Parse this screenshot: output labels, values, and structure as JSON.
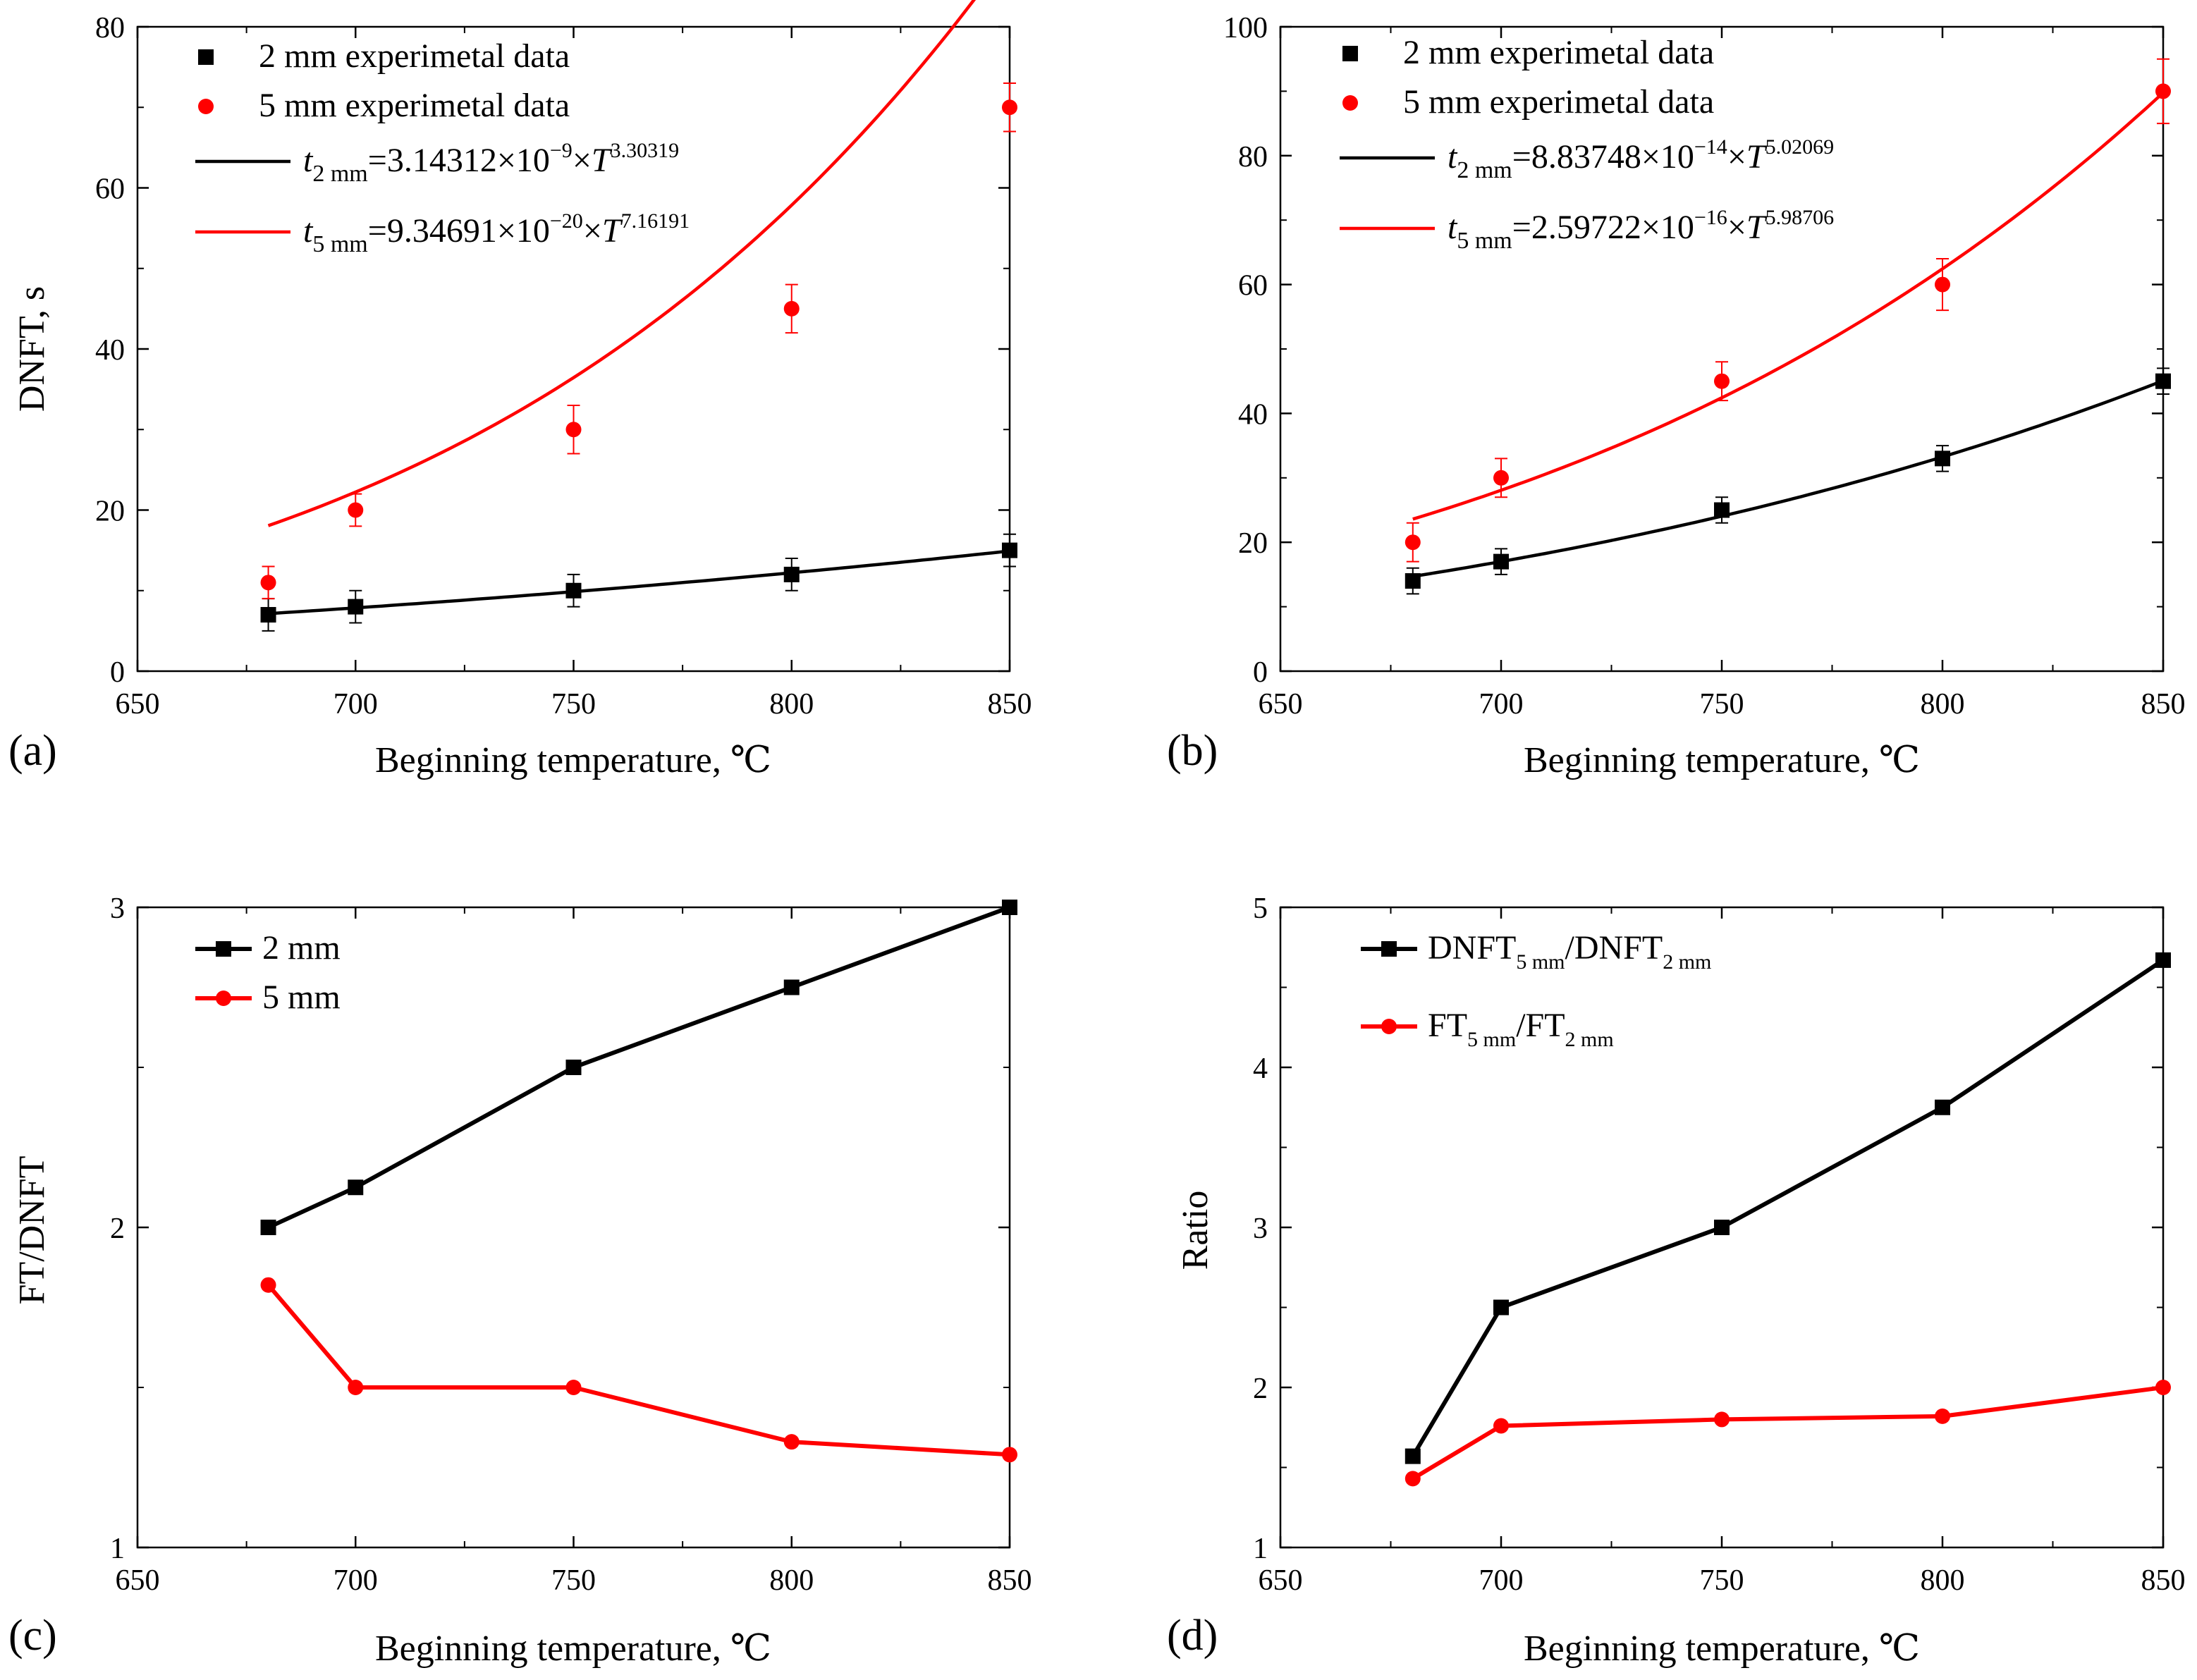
{
  "chart_data": [
    {
      "id": "a",
      "type": "scatter",
      "panel_label": "(a)",
      "xlabel": "Beginning temperature, ℃",
      "ylabel": "DNFT, s",
      "xlim": [
        650,
        850
      ],
      "ylim": [
        0,
        80
      ],
      "xticks": [
        650,
        700,
        750,
        800,
        850
      ],
      "yticks": [
        0,
        20,
        40,
        60,
        80
      ],
      "legend_position": "top-left",
      "series": [
        {
          "name": "2 mm experimetal data",
          "kind": "points",
          "marker": "square",
          "color": "#000000",
          "x": [
            680,
            700,
            750,
            800,
            850
          ],
          "y": [
            7,
            8,
            10,
            12,
            15
          ],
          "err": [
            2,
            2,
            2,
            2,
            2
          ]
        },
        {
          "name": "5 mm experimetal data",
          "kind": "points",
          "marker": "circle",
          "color": "#ff0000",
          "x": [
            680,
            700,
            750,
            800,
            850
          ],
          "y": [
            11,
            20,
            30,
            45,
            70
          ],
          "err": [
            2,
            2,
            3,
            3,
            3
          ]
        },
        {
          "name": "t_2mm fit",
          "kind": "fit",
          "color": "#000000",
          "coef": 3.14312e-09,
          "exp": 3.30319,
          "legend_parts": {
            "var": "t",
            "sub": "2 mm",
            "eq": "=3.14312×10",
            "sup1": "−9",
            "mid": "×T",
            "sup2": "3.30319"
          }
        },
        {
          "name": "t_5mm fit",
          "kind": "fit",
          "color": "#ff0000",
          "coef": 9.34691e-20,
          "exp": 7.16191,
          "legend_parts": {
            "var": "t",
            "sub": "5 mm",
            "eq": "=9.34691×10",
            "sup1": "−20",
            "mid": "×T",
            "sup2": "7.16191"
          }
        }
      ]
    },
    {
      "id": "b",
      "type": "scatter",
      "panel_label": "(b)",
      "xlabel": "Beginning temperature, ℃",
      "ylabel": "",
      "xlim": [
        650,
        850
      ],
      "ylim": [
        0,
        100
      ],
      "xticks": [
        650,
        700,
        750,
        800,
        850
      ],
      "yticks": [
        0,
        20,
        40,
        60,
        80,
        100
      ],
      "legend_position": "top-left",
      "series": [
        {
          "name": "2 mm experimetal data",
          "kind": "points",
          "marker": "square",
          "color": "#000000",
          "x": [
            680,
            700,
            750,
            800,
            850
          ],
          "y": [
            14,
            17,
            25,
            33,
            45
          ],
          "err": [
            2,
            2,
            2,
            2,
            2
          ]
        },
        {
          "name": "5 mm experimetal data",
          "kind": "points",
          "marker": "circle",
          "color": "#ff0000",
          "x": [
            680,
            700,
            750,
            800,
            850
          ],
          "y": [
            20,
            30,
            45,
            60,
            90
          ],
          "err": [
            3,
            3,
            3,
            4,
            5
          ]
        },
        {
          "name": "t_2mm fit",
          "kind": "fit",
          "color": "#000000",
          "coef": 8.83748e-14,
          "exp": 5.02069,
          "legend_parts": {
            "var": "t",
            "sub": "2 mm",
            "eq": "=8.83748×10",
            "sup1": "−14",
            "mid": "×T",
            "sup2": "5.02069"
          }
        },
        {
          "name": "t_5mm fit",
          "kind": "fit",
          "color": "#ff0000",
          "coef": 2.59722e-16,
          "exp": 5.98706,
          "legend_parts": {
            "var": "t",
            "sub": "5 mm",
            "eq": "=2.59722×10",
            "sup1": "−16",
            "mid": "×T",
            "sup2": "5.98706"
          }
        }
      ]
    },
    {
      "id": "c",
      "type": "line",
      "panel_label": "(c)",
      "xlabel": "Beginning temperature, ℃",
      "ylabel": "FT/DNFT",
      "xlim": [
        650,
        850
      ],
      "ylim": [
        1,
        3
      ],
      "xticks": [
        650,
        700,
        750,
        800,
        850
      ],
      "yticks": [
        1,
        2,
        3
      ],
      "legend_position": "top-left",
      "series": [
        {
          "name": "2 mm",
          "kind": "line",
          "marker": "square",
          "color": "#000000",
          "x": [
            680,
            700,
            750,
            800,
            850
          ],
          "y": [
            2.0,
            2.125,
            2.5,
            2.75,
            3.0
          ]
        },
        {
          "name": "5 mm",
          "kind": "line",
          "marker": "circle",
          "color": "#ff0000",
          "x": [
            680,
            700,
            750,
            800,
            850
          ],
          "y": [
            1.82,
            1.5,
            1.5,
            1.33,
            1.29
          ]
        }
      ]
    },
    {
      "id": "d",
      "type": "line",
      "panel_label": "(d)",
      "xlabel": "Beginning temperature, ℃",
      "ylabel": "Ratio",
      "xlim": [
        650,
        850
      ],
      "ylim": [
        1,
        5
      ],
      "xticks": [
        650,
        700,
        750,
        800,
        850
      ],
      "yticks": [
        1,
        2,
        3,
        4,
        5
      ],
      "legend_position": "top-left",
      "series": [
        {
          "name": "DNFT5mm/DNFT2mm",
          "kind": "line",
          "marker": "square",
          "color": "#000000",
          "x": [
            680,
            700,
            750,
            800,
            850
          ],
          "y": [
            1.57,
            2.5,
            3.0,
            3.75,
            4.67
          ],
          "legend_parts": {
            "a": "DNFT",
            "sa": "5 mm",
            "b": "/DNFT",
            "sb": "2 mm"
          }
        },
        {
          "name": "FT5mm/FT2mm",
          "kind": "line",
          "marker": "circle",
          "color": "#ff0000",
          "x": [
            680,
            700,
            750,
            800,
            850
          ],
          "y": [
            1.43,
            1.76,
            1.8,
            1.82,
            2.0
          ],
          "legend_parts": {
            "a": "FT",
            "sa": "5 mm",
            "b": "/FT",
            "sb": "2 mm"
          }
        }
      ]
    }
  ]
}
